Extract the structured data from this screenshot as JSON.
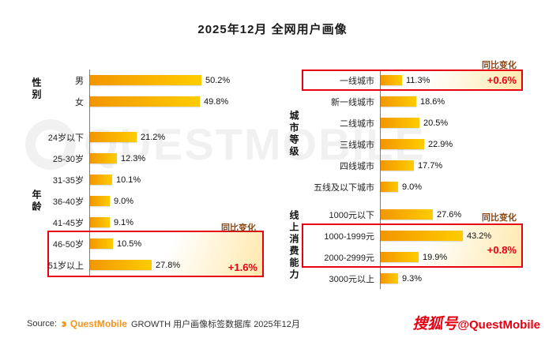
{
  "title": "2025年12月 全网用户画像",
  "chart_data": [
    {
      "type": "bar",
      "group_label": "性别",
      "unit": "%",
      "categories": [
        "男",
        "女"
      ],
      "values": [
        50.2,
        49.8
      ],
      "labels": [
        "50.2%",
        "49.8%"
      ]
    },
    {
      "type": "bar",
      "group_label": "年龄",
      "unit": "%",
      "categories": [
        "24岁以下",
        "25-30岁",
        "31-35岁",
        "36-40岁",
        "41-45岁",
        "46-50岁",
        "51岁以上"
      ],
      "values": [
        21.2,
        12.3,
        10.1,
        9.0,
        9.1,
        10.5,
        27.8
      ],
      "labels": [
        "21.2%",
        "12.3%",
        "10.1%",
        "9.0%",
        "9.1%",
        "10.5%",
        "27.8%"
      ],
      "yoy": {
        "label": "同比变化",
        "value": "+1.6%",
        "applies_to": [
          "46-50岁",
          "51岁以上"
        ]
      }
    },
    {
      "type": "bar",
      "group_label": "城市等级",
      "unit": "%",
      "categories": [
        "一线城市",
        "新一线城市",
        "二线城市",
        "三线城市",
        "四线城市",
        "五线及以下城市"
      ],
      "values": [
        11.3,
        18.6,
        20.5,
        22.9,
        17.7,
        9.0
      ],
      "labels": [
        "11.3%",
        "18.6%",
        "20.5%",
        "22.9%",
        "17.7%",
        "9.0%"
      ],
      "yoy": {
        "label": "同比变化",
        "value": "+0.6%",
        "applies_to": [
          "一线城市"
        ]
      }
    },
    {
      "type": "bar",
      "group_label": "线上消费能力",
      "unit": "%",
      "categories": [
        "1000元以下",
        "1000-1999元",
        "2000-2999元",
        "3000元以上"
      ],
      "values": [
        27.6,
        43.2,
        19.9,
        9.3
      ],
      "labels": [
        "27.6%",
        "43.2%",
        "19.9%",
        "9.3%"
      ],
      "yoy": {
        "label": "同比变化",
        "value": "+0.8%",
        "applies_to": [
          "1000-1999元",
          "2000-2999元"
        ]
      }
    }
  ],
  "source": {
    "prefix": "Source:",
    "brand": "QuestMobile",
    "suffix": "GROWTH 用户画像标签数据库 2025年12月"
  },
  "watermark_logo": "QUESTMOBILE",
  "stamp": {
    "account": "搜狐号",
    "handle": "@QuestMobile"
  },
  "colors": {
    "bar_start": "#F29600",
    "bar_end": "#FFCC00",
    "highlight": "#E60012",
    "yoy_text": "#8B4513"
  }
}
